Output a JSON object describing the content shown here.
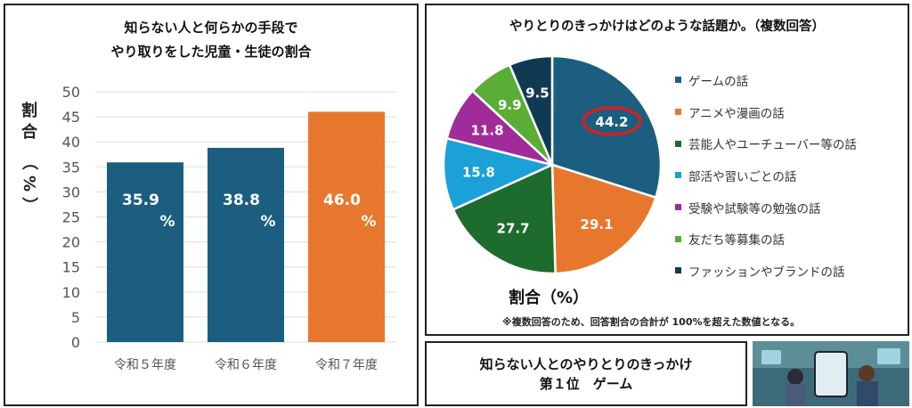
{
  "chart_data": [
    {
      "type": "bar",
      "title": [
        "知らない人と何らかの手段で",
        "やり取りをした児童・生徒の割合"
      ],
      "ylabel": "割合（%）",
      "ylim": [
        0,
        50
      ],
      "yticks": [
        0,
        5,
        10,
        15,
        20,
        25,
        30,
        35,
        40,
        45,
        50
      ],
      "grid": true,
      "categories": [
        "令和５年度",
        "令和６年度",
        "令和７年度"
      ],
      "values": [
        35.9,
        38.8,
        46.0
      ],
      "data_labels": [
        [
          "35.9",
          "%"
        ],
        [
          "38.8",
          "%"
        ],
        [
          "46.0",
          "%"
        ]
      ],
      "colors": [
        "#1b5e80",
        "#1b5e80",
        "#e8772e"
      ]
    },
    {
      "type": "pie",
      "title": "やりとりのきっかけはどのような話題か。（複数回答）",
      "label": "割合（%）",
      "note": "※複数回答のため、回答割合の合計が 100%を超えた数値となる。",
      "legend_position": "right",
      "categories": [
        "ゲームの話",
        "アニメや漫画の話",
        "芸能人やユーチューバー等の話",
        "部活や習いごとの話",
        "受験や試験等の勉強の話",
        "友だち等募集の話",
        "ファッションやブランドの話"
      ],
      "values": [
        44.2,
        29.1,
        27.7,
        15.8,
        11.8,
        9.9,
        9.5
      ],
      "data_labels": [
        "44.2",
        "29.1",
        "27.7",
        "15.8",
        "11.8",
        "9.9",
        "9.5"
      ],
      "colors": [
        "#1b5e80",
        "#e8772e",
        "#1e6b2e",
        "#1ba0d8",
        "#a02c9a",
        "#5aad35",
        "#0f3a52"
      ],
      "highlight": "44.2",
      "highlight_color": "#d42020"
    }
  ],
  "summary": {
    "line1": "知らない人とのやりとりのきっかけ",
    "line2": "第１位　ゲーム"
  }
}
